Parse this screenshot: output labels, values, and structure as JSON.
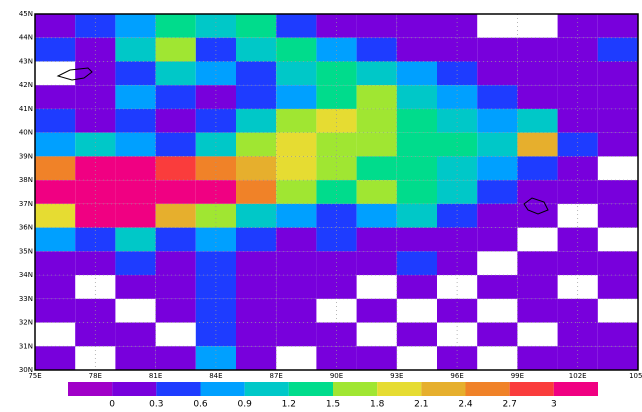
{
  "chart_data": {
    "type": "heatmap",
    "lon": [
      76,
      78,
      80,
      82,
      84,
      86,
      88,
      90,
      92,
      94,
      96,
      98,
      100,
      102,
      104
    ],
    "lat": [
      44.5,
      43.5,
      42.5,
      41.5,
      40.5,
      39.5,
      38.5,
      37.5,
      36.5,
      35.5,
      34.5,
      33.5,
      32.5,
      31.5,
      30.5
    ],
    "values": [
      [
        0.1,
        0.4,
        0.7,
        1.3,
        1.0,
        1.3,
        0.4,
        0.1,
        0.1,
        0.1,
        0.1,
        null,
        null,
        0.1,
        0.1
      ],
      [
        0.4,
        0.1,
        1.0,
        1.6,
        0.4,
        1.0,
        1.3,
        0.7,
        0.4,
        0.1,
        0.1,
        0.1,
        0.1,
        0.1,
        0.4
      ],
      [
        null,
        0.1,
        0.4,
        1.0,
        0.7,
        0.4,
        1.0,
        1.3,
        1.0,
        0.7,
        0.4,
        0.1,
        0.1,
        0.1,
        0.1
      ],
      [
        0.1,
        0.1,
        0.7,
        0.4,
        0.1,
        0.4,
        0.7,
        1.3,
        1.6,
        1.0,
        0.7,
        0.4,
        0.1,
        0.1,
        0.1
      ],
      [
        0.4,
        0.1,
        0.4,
        0.1,
        0.4,
        1.0,
        1.6,
        1.9,
        1.6,
        1.3,
        1.0,
        0.7,
        1.0,
        0.1,
        0.1
      ],
      [
        0.7,
        1.0,
        0.7,
        0.4,
        1.0,
        1.6,
        1.9,
        1.6,
        1.6,
        1.3,
        1.3,
        1.0,
        2.2,
        0.4,
        0.1
      ],
      [
        2.5,
        3.1,
        3.1,
        2.8,
        2.5,
        2.2,
        1.9,
        1.6,
        1.3,
        1.3,
        1.0,
        0.7,
        0.4,
        0.1,
        null
      ],
      [
        3.1,
        3.1,
        3.1,
        3.1,
        3.1,
        2.5,
        1.6,
        1.3,
        1.6,
        1.3,
        1.0,
        0.4,
        0.1,
        0.1,
        0.1
      ],
      [
        1.9,
        3.1,
        3.1,
        2.2,
        1.6,
        1.0,
        0.7,
        0.4,
        0.7,
        1.0,
        0.4,
        0.1,
        0.1,
        null,
        0.1
      ],
      [
        0.7,
        0.4,
        1.0,
        0.4,
        0.7,
        0.4,
        0.1,
        0.4,
        0.1,
        0.1,
        0.1,
        0.1,
        null,
        0.1,
        null
      ],
      [
        0.1,
        0.1,
        0.4,
        0.1,
        0.4,
        0.1,
        0.1,
        0.1,
        0.1,
        0.4,
        0.1,
        null,
        0.1,
        0.1,
        0.1
      ],
      [
        0.1,
        null,
        0.1,
        0.1,
        0.4,
        0.1,
        0.1,
        0.1,
        null,
        0.1,
        null,
        0.1,
        0.1,
        null,
        0.1
      ],
      [
        0.1,
        0.1,
        null,
        0.1,
        0.4,
        0.1,
        0.1,
        null,
        0.1,
        null,
        0.1,
        null,
        0.1,
        0.1,
        null
      ],
      [
        null,
        0.1,
        0.1,
        null,
        0.4,
        0.1,
        0.1,
        0.1,
        null,
        0.1,
        null,
        0.1,
        null,
        0.1,
        0.1
      ],
      [
        0.1,
        null,
        0.1,
        0.1,
        0.7,
        0.1,
        null,
        0.1,
        0.1,
        null,
        0.1,
        null,
        0.1,
        0.1,
        0.1
      ]
    ],
    "levels": [
      0,
      0.3,
      0.6,
      0.9,
      1.2,
      1.5,
      1.8,
      2.1,
      2.4,
      2.7,
      3
    ],
    "colors": [
      "#a000c8",
      "#7800dc",
      "#1e3cff",
      "#00a0ff",
      "#00c8c8",
      "#00dc8c",
      "#a0e632",
      "#e6dc32",
      "#e6af2d",
      "#f08228",
      "#fa3c3c",
      "#f00082"
    ],
    "xlim": [
      75,
      105
    ],
    "ylim": [
      30,
      45
    ],
    "xticks": [
      {
        "value": 75,
        "label": "75E"
      },
      {
        "value": 78,
        "label": "78E"
      },
      {
        "value": 81,
        "label": "81E"
      },
      {
        "value": 84,
        "label": "84E"
      },
      {
        "value": 87,
        "label": "87E"
      },
      {
        "value": 90,
        "label": "90E"
      },
      {
        "value": 93,
        "label": "93E"
      },
      {
        "value": 96,
        "label": "96E"
      },
      {
        "value": 99,
        "label": "99E"
      },
      {
        "value": 102,
        "label": "102E"
      },
      {
        "value": 105,
        "label": "105E"
      }
    ],
    "yticks": [
      {
        "value": 30,
        "label": "30N"
      },
      {
        "value": 31,
        "label": "31N"
      },
      {
        "value": 32,
        "label": "32N"
      },
      {
        "value": 33,
        "label": "33N"
      },
      {
        "value": 34,
        "label": "34N"
      },
      {
        "value": 35,
        "label": "35N"
      },
      {
        "value": 36,
        "label": "36N"
      },
      {
        "value": 37,
        "label": "37N"
      },
      {
        "value": 38,
        "label": "38N"
      },
      {
        "value": 39,
        "label": "39N"
      },
      {
        "value": 40,
        "label": "40N"
      },
      {
        "value": 41,
        "label": "41N"
      },
      {
        "value": 42,
        "label": "42N"
      },
      {
        "value": 43,
        "label": "43N"
      },
      {
        "value": 44,
        "label": "44N"
      },
      {
        "value": 45,
        "label": "45N"
      }
    ],
    "grid": true
  }
}
